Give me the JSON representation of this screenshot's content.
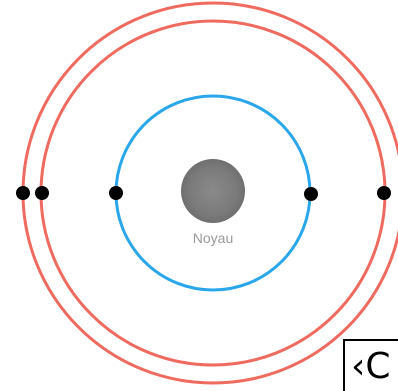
{
  "nucleus": {
    "label": "Noyau"
  },
  "corner_overlay": {
    "glyph_text": "‹C"
  },
  "colors": {
    "inner_shell": "#2aa7ea",
    "outer_shells": "#ef6a5f",
    "electron": "#000000",
    "nucleus_center": "#8e8e8e",
    "nucleus_edge": "#6f6f6f",
    "nucleus_label": "#9a9a9a"
  }
}
